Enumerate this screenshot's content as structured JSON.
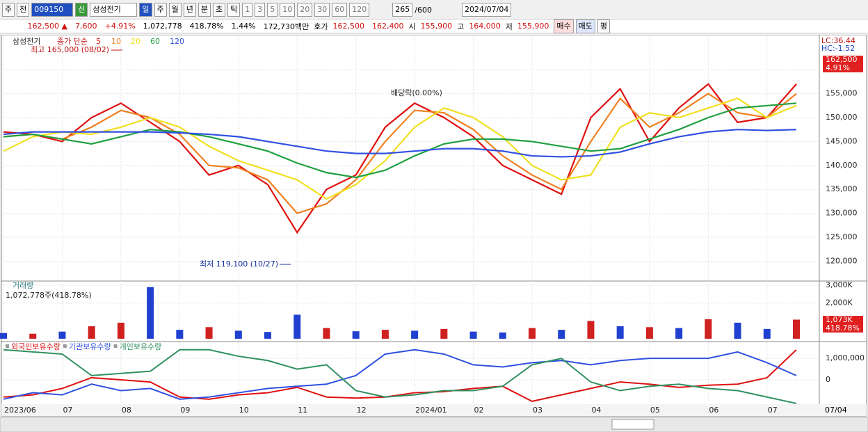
{
  "toolbar": {
    "market": "주",
    "mode": "전",
    "code": "009150",
    "badge": "신",
    "name": "삼성전기",
    "periods": [
      "일",
      "주",
      "월",
      "년",
      "분",
      "초",
      "틱"
    ],
    "intervals": [
      "1",
      "3",
      "5",
      "10",
      "20",
      "30",
      "60",
      "120"
    ],
    "count": "265",
    "count_max": "/600",
    "date": "2024/07/04"
  },
  "quote": {
    "items": [
      "162,500 ▲",
      "7,600",
      "+4.91%",
      "1,072,778",
      "418.78%",
      "1.44%",
      "172,730백만"
    ],
    "hoga_label": "호가",
    "hoga": [
      "162,500",
      "162,400"
    ],
    "ohl": [
      [
        "시",
        "155,900"
      ],
      [
        "고",
        "164,000"
      ],
      [
        "저",
        "155,900"
      ]
    ],
    "buttons": [
      "매수",
      "매도",
      "평"
    ]
  },
  "chart_data": [
    {
      "type": "line",
      "title": "삼성전기",
      "series_label": "종가 단순",
      "categories": [
        "2023/06",
        null,
        "07",
        null,
        "08",
        null,
        "09",
        null,
        "10",
        null,
        "11",
        null,
        "12",
        null,
        "2024/01",
        null,
        "02",
        null,
        "03",
        null,
        "04",
        null,
        "05",
        null,
        "06",
        null,
        "07",
        null
      ],
      "ylim": [
        116000,
        167000
      ],
      "yticks": [
        {
          "value": 120000,
          "label": "120,000"
        },
        {
          "value": 125000,
          "label": "125,000"
        },
        {
          "value": 130000,
          "label": "130,000"
        },
        {
          "value": 135000,
          "label": "135,000"
        },
        {
          "value": 140000,
          "label": "140,000"
        },
        {
          "value": 145000,
          "label": "145,000"
        },
        {
          "value": 150000,
          "label": "150,000"
        },
        {
          "value": 155000,
          "label": "155,000"
        },
        {
          "value": 160000,
          "label": "160,000"
        }
      ],
      "grid": true,
      "series": [
        {
          "name": "5",
          "color": "#e01010",
          "values": [
            147000,
            146500,
            145000,
            150000,
            153000,
            149000,
            145000,
            138000,
            140000,
            136000,
            126000,
            135000,
            138000,
            148000,
            153000,
            150000,
            146000,
            140000,
            137000,
            134000,
            150000,
            156000,
            145000,
            152000,
            157000,
            149000,
            150000,
            157000
          ]
        },
        {
          "name": "10",
          "color": "#f08020",
          "values": [
            146000,
            146500,
            145500,
            148000,
            151500,
            150000,
            146500,
            140000,
            139500,
            137000,
            130000,
            132000,
            137000,
            145000,
            151500,
            151000,
            147500,
            142000,
            138000,
            135000,
            145000,
            154000,
            148000,
            151000,
            155000,
            151000,
            150000,
            155000
          ]
        },
        {
          "name": "20",
          "color": "#f0e020",
          "values": [
            143000,
            146000,
            147000,
            146500,
            148000,
            150000,
            148000,
            144000,
            141000,
            139000,
            137000,
            133000,
            136000,
            141000,
            148000,
            152000,
            150000,
            146000,
            140000,
            137000,
            138000,
            148000,
            151000,
            150000,
            152000,
            154000,
            150000,
            152500
          ]
        },
        {
          "name": "60",
          "color": "#20a040",
          "values": [
            146000,
            146500,
            145500,
            144500,
            146000,
            147500,
            147000,
            146000,
            144500,
            143000,
            140500,
            138500,
            137500,
            139000,
            142000,
            144500,
            145500,
            145500,
            145000,
            144000,
            143000,
            143500,
            145500,
            147500,
            150000,
            152000,
            152500,
            153000
          ]
        },
        {
          "name": "120",
          "color": "#3050e0",
          "values": [
            146500,
            147000,
            147000,
            147000,
            147000,
            147000,
            146800,
            146500,
            146000,
            145000,
            144000,
            143000,
            142500,
            142500,
            143000,
            143500,
            143500,
            143000,
            142000,
            141800,
            142000,
            142800,
            144500,
            146000,
            147000,
            147500,
            147300,
            147500
          ]
        }
      ],
      "annotations": [
        "최고 165,000 (08/02)",
        "최저 119,100 (10/27)",
        "배당락(0.00%)"
      ],
      "right_labels": [
        "LC:36.44",
        "HC:-1.52"
      ],
      "last_label": "162,500",
      "change_label": "4.91%",
      "x_end_label": "07/04"
    },
    {
      "type": "bar",
      "title": "거래량",
      "subtitle": "1,072,778주(418.78%)",
      "ylim": [
        -120000,
        3200000
      ],
      "yticks": [
        {
          "value": 2000000,
          "label": "2,000K"
        },
        {
          "value": 3000000,
          "label": "3,000K"
        }
      ],
      "values": [
        320000,
        280000,
        400000,
        700000,
        900000,
        2900000,
        500000,
        650000,
        450000,
        380000,
        1350000,
        600000,
        420000,
        500000,
        450000,
        550000,
        400000,
        350000,
        600000,
        500000,
        1000000,
        700000,
        650000,
        600000,
        1100000,
        900000,
        550000,
        1072778
      ],
      "bar_colors": [
        "#2040d0",
        "#d02020",
        "#2040d0",
        "#d02020",
        "#d02020",
        "#2040d0",
        "#2040d0",
        "#d02020",
        "#2040d0",
        "#2040d0",
        "#2040d0",
        "#d02020",
        "#2040d0",
        "#d02020",
        "#2040d0",
        "#d02020",
        "#2040d0",
        "#2040d0",
        "#d02020",
        "#2040d0",
        "#d02020",
        "#2040d0",
        "#d02020",
        "#2040d0",
        "#d02020",
        "#2040d0",
        "#2040d0",
        "#d02020"
      ],
      "last_label": "1,073K",
      "change_label": "418.78%"
    },
    {
      "type": "line",
      "ylim": [
        -1100000,
        1750000
      ],
      "yticks": [
        0,
        {
          "value": 1000000,
          "label": "1,000,000"
        }
      ],
      "series": [
        {
          "name": "외국인보유수량",
          "color": "#e01010",
          "values": [
            -800000,
            -700000,
            -400000,
            100000,
            0,
            -100000,
            -800000,
            -900000,
            -700000,
            -600000,
            -350000,
            -800000,
            -850000,
            -800000,
            -600000,
            -550000,
            -400000,
            -300000,
            -1000000,
            -700000,
            -400000,
            -100000,
            -200000,
            -350000,
            -250000,
            -200000,
            100000,
            1400000
          ]
        },
        {
          "name": "기관보유수량",
          "color": "#3050e0",
          "values": [
            -900000,
            -600000,
            -700000,
            -200000,
            -500000,
            -400000,
            -900000,
            -800000,
            -600000,
            -400000,
            -300000,
            -200000,
            200000,
            1200000,
            1400000,
            1200000,
            700000,
            600000,
            800000,
            900000,
            700000,
            900000,
            1000000,
            1000000,
            1000000,
            1300000,
            800000,
            200000
          ]
        },
        {
          "name": "개인보유수량",
          "color": "#309060",
          "values": [
            1400000,
            1300000,
            1200000,
            200000,
            300000,
            400000,
            1400000,
            1400000,
            1100000,
            900000,
            500000,
            700000,
            -500000,
            -800000,
            -700000,
            -500000,
            -500000,
            -300000,
            700000,
            1000000,
            -100000,
            -500000,
            -300000,
            -200000,
            -400000,
            -500000,
            -800000,
            -1100000
          ]
        }
      ]
    }
  ]
}
